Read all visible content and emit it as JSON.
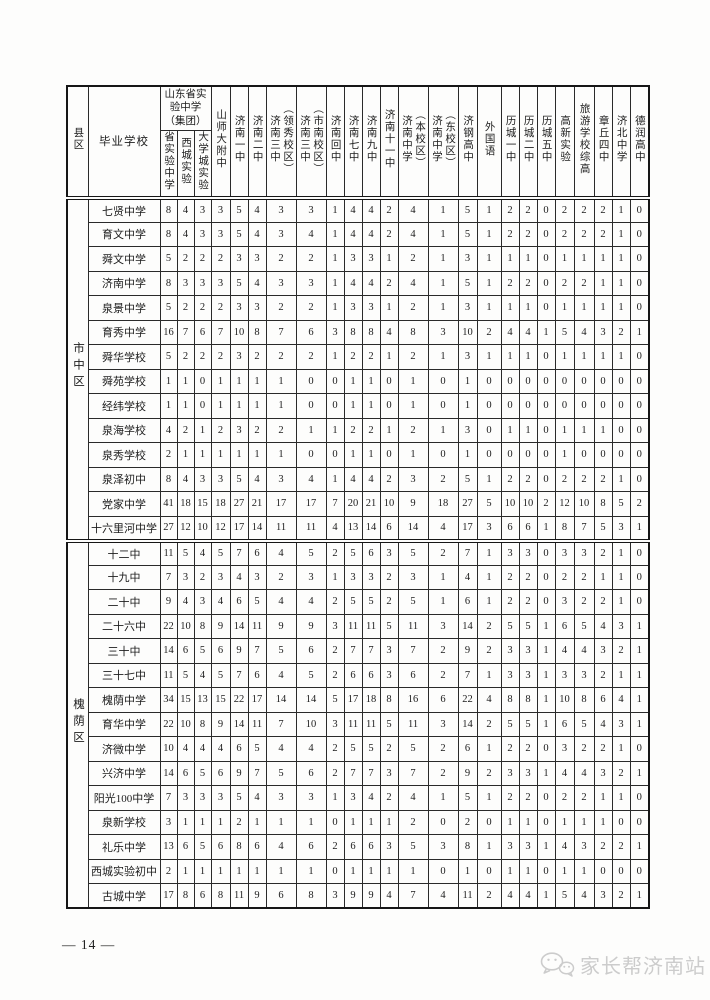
{
  "page": {
    "page_number": "— 14 —",
    "watermark": {
      "icon": "wechat-bubbles-icon",
      "text": "家长帮济南站",
      "color": "#cccccc"
    }
  },
  "table": {
    "header": {
      "district_label": "县区",
      "school_label": "毕业学校",
      "group": {
        "label": "山东省实验中学（集团）",
        "children": [
          "省实验中学",
          "西城实验",
          "大学城实验"
        ]
      },
      "columns": [
        "山师大附中",
        "济南一中",
        "济南二中",
        "济南三中\n（领秀校区）",
        "济南三中\n（市南校区）",
        "济南回中",
        "济南七中",
        "济南九中",
        "济南十一中",
        "济南中学\n（本校区）",
        "济南中学\n（东校区）",
        "济钢高中",
        "外国语",
        "历城一中",
        "历城二中",
        "历城五中",
        "高新实验",
        "旅游学校综高",
        "章丘四中",
        "济北中学",
        "德润高中"
      ]
    },
    "sections": [
      {
        "district": "市中区",
        "rows": [
          {
            "school": "七贤中学",
            "values": [
              8,
              4,
              3,
              3,
              5,
              4,
              3,
              3,
              1,
              4,
              4,
              2,
              4,
              1,
              5,
              1,
              2,
              2,
              0,
              2,
              2,
              2,
              1,
              0
            ]
          },
          {
            "school": "育文中学",
            "values": [
              8,
              4,
              3,
              3,
              5,
              4,
              3,
              4,
              1,
              4,
              4,
              2,
              4,
              1,
              5,
              1,
              2,
              2,
              0,
              2,
              2,
              2,
              1,
              0
            ]
          },
          {
            "school": "舜文中学",
            "values": [
              5,
              2,
              2,
              2,
              3,
              3,
              2,
              2,
              1,
              3,
              3,
              1,
              2,
              1,
              3,
              1,
              1,
              1,
              0,
              1,
              1,
              1,
              1,
              0
            ]
          },
          {
            "school": "济南中学",
            "values": [
              8,
              3,
              3,
              3,
              5,
              4,
              3,
              3,
              1,
              4,
              4,
              2,
              4,
              1,
              5,
              1,
              2,
              2,
              0,
              2,
              2,
              1,
              1,
              0
            ]
          },
          {
            "school": "泉景中学",
            "values": [
              5,
              2,
              2,
              2,
              3,
              3,
              2,
              2,
              1,
              3,
              3,
              1,
              2,
              1,
              3,
              1,
              1,
              1,
              0,
              1,
              1,
              1,
              1,
              0
            ]
          },
          {
            "school": "育秀中学",
            "values": [
              16,
              7,
              6,
              7,
              10,
              8,
              7,
              6,
              3,
              8,
              8,
              4,
              8,
              3,
              10,
              2,
              4,
              4,
              1,
              5,
              4,
              3,
              2,
              1
            ]
          },
          {
            "school": "舜华学校",
            "values": [
              5,
              2,
              2,
              2,
              3,
              2,
              2,
              2,
              1,
              2,
              2,
              1,
              2,
              1,
              3,
              1,
              1,
              1,
              0,
              1,
              1,
              1,
              1,
              0
            ]
          },
          {
            "school": "舜苑学校",
            "values": [
              1,
              1,
              0,
              1,
              1,
              1,
              1,
              0,
              0,
              1,
              1,
              0,
              1,
              0,
              1,
              0,
              0,
              0,
              0,
              0,
              0,
              0,
              0,
              0
            ]
          },
          {
            "school": "经纬学校",
            "values": [
              1,
              1,
              0,
              1,
              1,
              1,
              1,
              0,
              0,
              1,
              1,
              0,
              1,
              0,
              1,
              0,
              0,
              0,
              0,
              0,
              0,
              0,
              0,
              0
            ]
          },
          {
            "school": "泉海学校",
            "values": [
              4,
              2,
              1,
              2,
              3,
              2,
              2,
              1,
              1,
              2,
              2,
              1,
              2,
              1,
              3,
              0,
              1,
              1,
              0,
              1,
              1,
              1,
              0,
              0
            ]
          },
          {
            "school": "泉秀学校",
            "values": [
              2,
              1,
              1,
              1,
              1,
              1,
              1,
              0,
              0,
              1,
              1,
              0,
              1,
              0,
              1,
              0,
              0,
              0,
              0,
              1,
              0,
              0,
              0,
              0
            ]
          },
          {
            "school": "泉泽初中",
            "values": [
              8,
              4,
              3,
              3,
              5,
              4,
              3,
              4,
              1,
              4,
              4,
              2,
              3,
              2,
              5,
              1,
              2,
              2,
              0,
              2,
              2,
              2,
              1,
              0
            ]
          },
          {
            "school": "党家中学",
            "values": [
              41,
              18,
              15,
              18,
              27,
              21,
              17,
              17,
              7,
              20,
              21,
              10,
              9,
              18,
              27,
              5,
              10,
              10,
              2,
              12,
              10,
              8,
              5,
              2
            ]
          },
          {
            "school": "十六里河中学",
            "values": [
              27,
              12,
              10,
              12,
              17,
              14,
              11,
              11,
              4,
              13,
              14,
              6,
              14,
              4,
              17,
              3,
              6,
              6,
              1,
              8,
              7,
              5,
              3,
              1
            ]
          }
        ]
      },
      {
        "district": "槐荫区",
        "rows": [
          {
            "school": "十二中",
            "values": [
              11,
              5,
              4,
              5,
              7,
              6,
              4,
              5,
              2,
              5,
              6,
              3,
              5,
              2,
              7,
              1,
              3,
              3,
              0,
              3,
              3,
              2,
              1,
              0
            ]
          },
          {
            "school": "十九中",
            "values": [
              7,
              3,
              2,
              3,
              4,
              3,
              2,
              3,
              1,
              3,
              3,
              2,
              3,
              1,
              4,
              1,
              2,
              2,
              0,
              2,
              2,
              1,
              1,
              0
            ]
          },
          {
            "school": "二十中",
            "values": [
              9,
              4,
              3,
              4,
              6,
              5,
              4,
              4,
              2,
              5,
              5,
              2,
              5,
              1,
              6,
              1,
              2,
              2,
              0,
              3,
              2,
              2,
              1,
              0
            ]
          },
          {
            "school": "二十六中",
            "values": [
              22,
              10,
              8,
              9,
              14,
              11,
              9,
              9,
              3,
              11,
              11,
              5,
              11,
              3,
              14,
              2,
              5,
              5,
              1,
              6,
              5,
              4,
              3,
              1
            ]
          },
          {
            "school": "三十中",
            "values": [
              14,
              6,
              5,
              6,
              9,
              7,
              5,
              6,
              2,
              7,
              7,
              3,
              7,
              2,
              9,
              2,
              3,
              3,
              1,
              4,
              4,
              3,
              2,
              1
            ]
          },
          {
            "school": "三十七中",
            "values": [
              11,
              5,
              4,
              5,
              7,
              6,
              4,
              5,
              2,
              6,
              6,
              3,
              6,
              2,
              7,
              1,
              3,
              3,
              1,
              3,
              3,
              2,
              1,
              1
            ]
          },
          {
            "school": "槐荫中学",
            "values": [
              34,
              15,
              13,
              15,
              22,
              17,
              14,
              14,
              5,
              17,
              18,
              8,
              16,
              6,
              22,
              4,
              8,
              8,
              1,
              10,
              8,
              6,
              4,
              1
            ]
          },
          {
            "school": "育华中学",
            "values": [
              22,
              10,
              8,
              9,
              14,
              11,
              7,
              10,
              3,
              11,
              11,
              5,
              11,
              3,
              14,
              2,
              5,
              5,
              1,
              6,
              5,
              4,
              3,
              1
            ]
          },
          {
            "school": "济微中学",
            "values": [
              10,
              4,
              4,
              4,
              6,
              5,
              4,
              4,
              2,
              5,
              5,
              2,
              5,
              2,
              6,
              1,
              2,
              2,
              0,
              3,
              2,
              2,
              1,
              0
            ]
          },
          {
            "school": "兴济中学",
            "values": [
              14,
              6,
              5,
              6,
              9,
              7,
              5,
              6,
              2,
              7,
              7,
              3,
              7,
              2,
              9,
              2,
              3,
              3,
              1,
              4,
              4,
              3,
              2,
              1
            ]
          },
          {
            "school": "阳光100中学",
            "values": [
              7,
              3,
              3,
              3,
              5,
              4,
              3,
              3,
              1,
              3,
              4,
              2,
              4,
              1,
              5,
              1,
              2,
              2,
              0,
              2,
              2,
              1,
              1,
              0
            ]
          },
          {
            "school": "泉新学校",
            "values": [
              3,
              1,
              1,
              1,
              2,
              1,
              1,
              1,
              0,
              1,
              1,
              1,
              2,
              0,
              2,
              0,
              1,
              1,
              0,
              1,
              1,
              1,
              0,
              0
            ]
          },
          {
            "school": "礼乐中学",
            "values": [
              13,
              6,
              5,
              6,
              8,
              6,
              4,
              6,
              2,
              6,
              6,
              3,
              5,
              3,
              8,
              1,
              3,
              3,
              1,
              4,
              3,
              2,
              2,
              1
            ]
          },
          {
            "school": "西城实验初中",
            "values": [
              2,
              1,
              1,
              1,
              1,
              1,
              1,
              1,
              0,
              1,
              1,
              1,
              1,
              0,
              1,
              0,
              1,
              1,
              0,
              1,
              1,
              0,
              0,
              0
            ]
          },
          {
            "school": "古城中学",
            "values": [
              17,
              8,
              6,
              8,
              11,
              9,
              6,
              8,
              3,
              9,
              9,
              4,
              7,
              4,
              11,
              2,
              4,
              4,
              1,
              5,
              4,
              3,
              2,
              1
            ]
          }
        ]
      }
    ]
  }
}
